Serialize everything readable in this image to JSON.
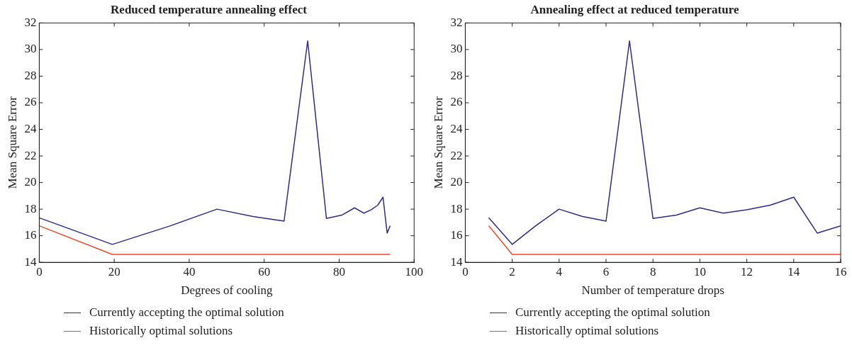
{
  "chart_data": [
    {
      "type": "line",
      "title": "Reduced temperature annealing effect",
      "xlabel": "Degrees of cooling",
      "ylabel": "Mean Square Error",
      "xlim": [
        0,
        100
      ],
      "xticks": [
        0,
        20,
        40,
        60,
        80,
        100
      ],
      "ylim": [
        14,
        32
      ],
      "yticks": [
        14,
        16,
        18,
        20,
        22,
        24,
        26,
        28,
        30,
        32
      ],
      "legend": "bottom",
      "grid": false,
      "marker": "none",
      "line_style": "solid",
      "series": [
        {
          "name": "Currently accepting the optimal solution",
          "color": "#2e2a8c",
          "x": [
            0,
            19.5,
            35,
            47.4,
            57,
            65.3,
            71.6,
            76.6,
            80.7,
            84.1,
            86.6,
            88.5,
            90.3,
            91.7,
            92.8,
            93.6
          ],
          "values": [
            17.35,
            15.35,
            16.75,
            18.0,
            17.45,
            17.1,
            30.65,
            17.3,
            17.55,
            18.1,
            17.7,
            17.95,
            18.3,
            18.9,
            16.2,
            16.75
          ]
        },
        {
          "name": "Historically optimal solutions",
          "color": "#f0472a",
          "x": [
            0,
            19.5,
            93.6
          ],
          "values": [
            16.75,
            14.6,
            14.6
          ]
        }
      ]
    },
    {
      "type": "line",
      "title": "Annealing effect at reduced temperature",
      "xlabel": "Number of temperature drops",
      "ylabel": "Mean Square Error",
      "xlim": [
        0,
        16
      ],
      "xticks": [
        0,
        2,
        4,
        6,
        8,
        10,
        12,
        14,
        16
      ],
      "ylim": [
        14,
        32
      ],
      "yticks": [
        14,
        16,
        18,
        20,
        22,
        24,
        26,
        28,
        30,
        32
      ],
      "legend": "bottom",
      "grid": false,
      "marker": "none",
      "line_style": "solid",
      "series": [
        {
          "name": "Currently accepting the optimal solution",
          "color": "#2e2a8c",
          "x": [
            1,
            2,
            3,
            4,
            5,
            6,
            7,
            8,
            9,
            10,
            11,
            12,
            13,
            14,
            15,
            16
          ],
          "values": [
            17.35,
            15.35,
            16.75,
            18.0,
            17.45,
            17.1,
            30.65,
            17.3,
            17.55,
            18.1,
            17.7,
            17.95,
            18.3,
            18.9,
            16.2,
            16.75
          ]
        },
        {
          "name": "Historically optimal solutions",
          "color": "#f0472a",
          "x": [
            1,
            2,
            16
          ],
          "values": [
            16.75,
            14.6,
            14.6
          ]
        }
      ]
    }
  ]
}
